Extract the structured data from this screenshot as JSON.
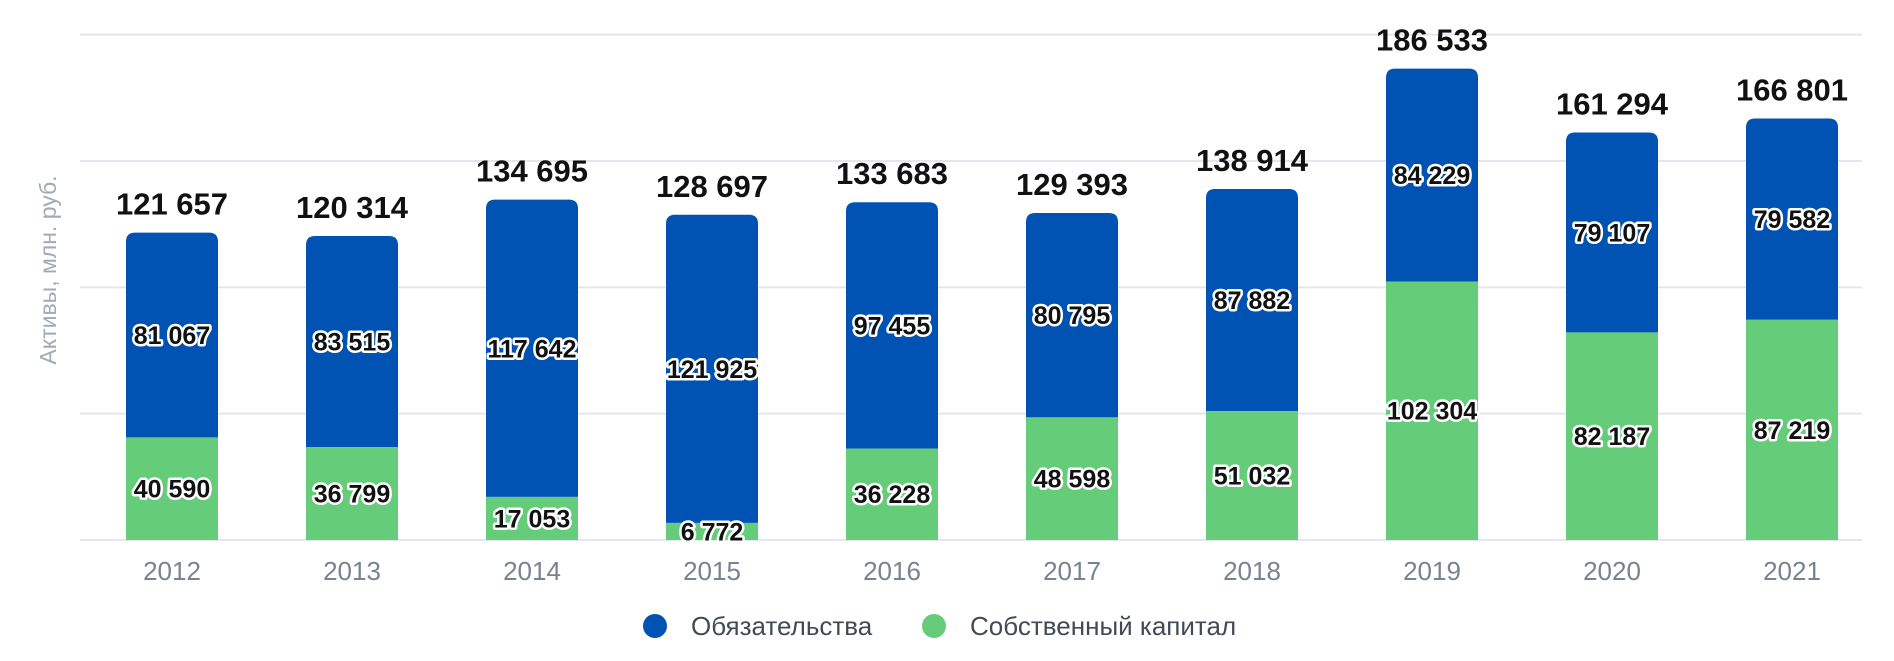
{
  "chart_data": {
    "type": "bar",
    "stacked": true,
    "ylabel": "Активы, млн. руб.",
    "categories": [
      "2012",
      "2013",
      "2014",
      "2015",
      "2016",
      "2017",
      "2018",
      "2019",
      "2020",
      "2021"
    ],
    "series": [
      {
        "name": "Собственный капитал",
        "color": "#65cc7a",
        "values": [
          40590,
          36799,
          17053,
          6772,
          36228,
          48598,
          51032,
          102304,
          82187,
          87219
        ],
        "labels": [
          "40 590",
          "36 799",
          "17 053",
          "6 772",
          "36 228",
          "48 598",
          "51 032",
          "102 304",
          "82 187",
          "87 219"
        ]
      },
      {
        "name": "Обязательства",
        "color": "#0053b3",
        "values": [
          81067,
          83515,
          117642,
          121925,
          97455,
          80795,
          87882,
          84229,
          79107,
          79582
        ],
        "labels": [
          "81 067",
          "83 515",
          "117 642",
          "121 925",
          "97 455",
          "80 795",
          "87 882",
          "84 229",
          "79 107",
          "79 582"
        ]
      }
    ],
    "totals": [
      121657,
      120314,
      134695,
      128697,
      133683,
      129393,
      138914,
      186533,
      161294,
      166801
    ],
    "total_labels": [
      "121 657",
      "120 314",
      "134 695",
      "128 697",
      "133 683",
      "129 393",
      "138 914",
      "186 533",
      "161 294",
      "166 801"
    ],
    "ylim": [
      0,
      205000
    ],
    "grid": true,
    "legend": {
      "position": "bottom-center",
      "items": [
        "Обязательства",
        "Собственный капитал"
      ]
    }
  }
}
